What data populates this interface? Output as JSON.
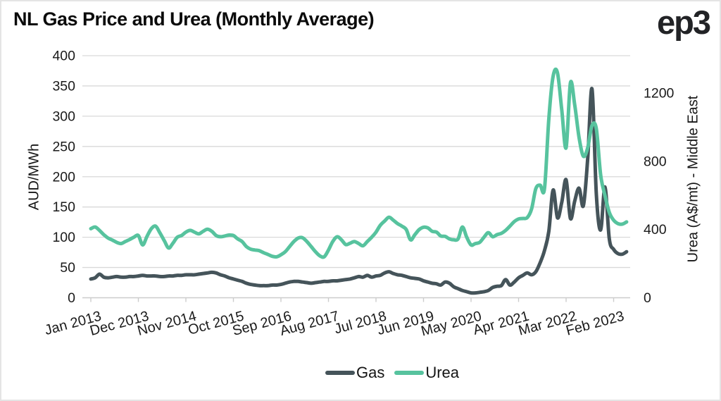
{
  "branding": {
    "logo_text": "ep3"
  },
  "chart_data": {
    "type": "line",
    "title": "NL Gas Price and Urea (Monthly Average)",
    "x_range": {
      "start": "Jan 2013",
      "end": "May 2023",
      "frequency": "monthly"
    },
    "x_tick_labels": [
      "Jan 2013",
      "Dec 2013",
      "Nov 2014",
      "Oct 2015",
      "Sep 2016",
      "Aug 2017",
      "Jul 2018",
      "Jun 2019",
      "May 2020",
      "Apr 2021",
      "Mar 2022",
      "Feb 2023"
    ],
    "x_tick_interval_months": 11,
    "left_axis": {
      "label": "AUD/MWh",
      "ticks": [
        0,
        50,
        100,
        150,
        200,
        250,
        300,
        350,
        400
      ],
      "range": [
        0,
        400
      ]
    },
    "right_axis": {
      "label": "Urea (A$/mt) - Middle East",
      "ticks": [
        0,
        400,
        800,
        1200
      ],
      "range": [
        0,
        1420
      ]
    },
    "grid": "horizontal",
    "legend_position": "bottom-center",
    "series": [
      {
        "name": "Gas",
        "axis": "left",
        "color": "#45545a",
        "values": [
          31,
          33,
          39,
          34,
          33,
          34,
          35,
          34,
          34,
          35,
          35,
          36,
          37,
          36,
          36,
          36,
          35,
          35,
          36,
          36,
          37,
          37,
          38,
          38,
          38,
          39,
          40,
          41,
          42,
          41,
          38,
          36,
          33,
          31,
          29,
          27,
          24,
          22,
          21,
          20,
          20,
          20,
          21,
          21,
          22,
          24,
          26,
          27,
          27,
          26,
          25,
          24,
          25,
          26,
          27,
          27,
          28,
          28,
          29,
          30,
          31,
          33,
          35,
          34,
          37,
          34,
          36,
          37,
          41,
          43,
          40,
          38,
          37,
          35,
          33,
          32,
          31,
          28,
          26,
          24,
          23,
          21,
          26,
          24,
          18,
          15,
          12,
          10,
          8,
          8,
          9,
          10,
          12,
          17,
          19,
          20,
          30,
          21,
          26,
          33,
          37,
          41,
          38,
          43,
          58,
          78,
          110,
          178,
          132,
          158,
          195,
          131,
          160,
          181,
          152,
          230,
          345,
          170,
          112,
          183,
          97,
          80,
          73,
          72,
          76
        ]
      },
      {
        "name": "Urea",
        "axis": "right",
        "color": "#57c39e",
        "values": [
          405,
          415,
          395,
          370,
          350,
          338,
          325,
          318,
          330,
          342,
          356,
          365,
          310,
          360,
          405,
          420,
          380,
          335,
          292,
          320,
          355,
          365,
          385,
          395,
          385,
          375,
          390,
          402,
          390,
          365,
          358,
          362,
          368,
          365,
          345,
          330,
          300,
          285,
          280,
          276,
          264,
          254,
          243,
          240,
          252,
          270,
          300,
          330,
          350,
          352,
          330,
          300,
          270,
          246,
          240,
          280,
          330,
          358,
          340,
          312,
          320,
          330,
          318,
          305,
          330,
          355,
          385,
          425,
          450,
          472,
          455,
          435,
          420,
          400,
          340,
          370,
          400,
          414,
          410,
          390,
          385,
          362,
          360,
          345,
          340,
          345,
          415,
          355,
          310,
          318,
          325,
          355,
          382,
          358,
          370,
          378,
          395,
          420,
          447,
          462,
          465,
          470,
          520,
          640,
          660,
          640,
          1050,
          1300,
          1320,
          1100,
          880,
          1260,
          1130,
          940,
          830,
          880,
          1010,
          990,
          720,
          600,
          500,
          455,
          435,
          432,
          445
        ]
      }
    ]
  },
  "colors": {
    "grid": "#d9d9d9",
    "axis_line": "#cccccc",
    "tick_text": "#1a1a1a"
  }
}
